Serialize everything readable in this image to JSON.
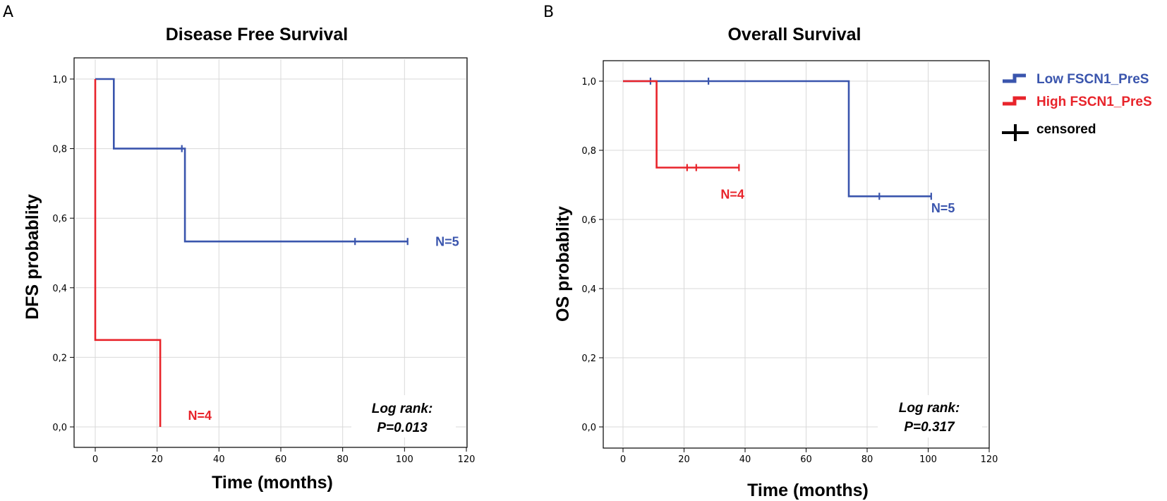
{
  "chart_data": [
    {
      "type": "line",
      "subtype": "kaplan-meier step",
      "panel_label": "A",
      "title": "Disease Free Survival",
      "xlabel": "Time (months)",
      "ylabel": "DFS probablity",
      "xlim": [
        0,
        120
      ],
      "ylim": [
        0,
        1
      ],
      "x_ticks": [
        0,
        20,
        40,
        60,
        80,
        100,
        120
      ],
      "x_tick_labels": [
        "0",
        "20",
        "40",
        "60",
        "80",
        "100",
        "120"
      ],
      "y_ticks": [
        0,
        0.2,
        0.4,
        0.6,
        0.8,
        1.0
      ],
      "y_tick_labels": [
        "0,0",
        "0,2",
        "0,4",
        "0,6",
        "0,8",
        "1,0"
      ],
      "grid": true,
      "series": [
        {
          "name": "Low FSCN1_PreS",
          "color": "#3a55ad",
          "n_label": "N=5",
          "steps": [
            [
              0,
              1.0
            ],
            [
              6,
              1.0
            ],
            [
              6,
              0.8
            ],
            [
              29,
              0.8
            ],
            [
              29,
              0.533
            ],
            [
              101,
              0.533
            ]
          ],
          "censored": [
            [
              28,
              0.8
            ],
            [
              84,
              0.533
            ],
            [
              101,
              0.533
            ]
          ],
          "n_label_at": [
            110,
            0.52
          ]
        },
        {
          "name": "High FSCN1_PreS",
          "color": "#e8242b",
          "n_label": "N=4",
          "steps": [
            [
              0,
              1.0
            ],
            [
              0,
              0.25
            ],
            [
              21,
              0.25
            ],
            [
              21,
              0.0
            ]
          ],
          "censored": [],
          "n_label_at": [
            30,
            0.02
          ]
        }
      ],
      "annotation": {
        "line1": "Log rank:",
        "line2": "P=0.013"
      }
    },
    {
      "type": "line",
      "subtype": "kaplan-meier step",
      "panel_label": "B",
      "title": "Overall Survival",
      "xlabel": "Time (months)",
      "ylabel": "OS probablity",
      "xlim": [
        0,
        120
      ],
      "ylim": [
        0,
        1
      ],
      "x_ticks": [
        0,
        20,
        40,
        60,
        80,
        100,
        120
      ],
      "x_tick_labels": [
        "0",
        "20",
        "40",
        "60",
        "80",
        "100",
        "120"
      ],
      "y_ticks": [
        0,
        0.2,
        0.4,
        0.6,
        0.8,
        1.0
      ],
      "y_tick_labels": [
        "0,0",
        "0,2",
        "0,4",
        "0,6",
        "0,8",
        "1,0"
      ],
      "grid": true,
      "series": [
        {
          "name": "Low FSCN1_PreS",
          "color": "#3a55ad",
          "n_label": "N=5",
          "steps": [
            [
              0,
              1.0
            ],
            [
              74,
              1.0
            ],
            [
              74,
              0.667
            ],
            [
              101,
              0.667
            ]
          ],
          "censored": [
            [
              9,
              1.0
            ],
            [
              28,
              1.0
            ],
            [
              84,
              0.667
            ],
            [
              101,
              0.667
            ]
          ],
          "n_label_at": [
            101,
            0.62
          ]
        },
        {
          "name": "High FSCN1_PreS",
          "color": "#e8242b",
          "n_label": "N=4",
          "steps": [
            [
              0,
              1.0
            ],
            [
              11,
              1.0
            ],
            [
              11,
              0.75
            ],
            [
              38,
              0.75
            ]
          ],
          "censored": [
            [
              21,
              0.75
            ],
            [
              24,
              0.75
            ],
            [
              38,
              0.75
            ]
          ],
          "n_label_at": [
            32,
            0.66
          ]
        }
      ],
      "annotation": {
        "line1": "Log rank:",
        "line2": "P=0.317"
      }
    }
  ],
  "legend": {
    "items": [
      {
        "label": "Low FSCN1_PreS",
        "color": "#3a55ad",
        "kind": "step"
      },
      {
        "label": "High FSCN1_PreS",
        "color": "#e8242b",
        "kind": "step"
      },
      {
        "label": "censored",
        "color": "#000000",
        "kind": "cross"
      }
    ]
  }
}
